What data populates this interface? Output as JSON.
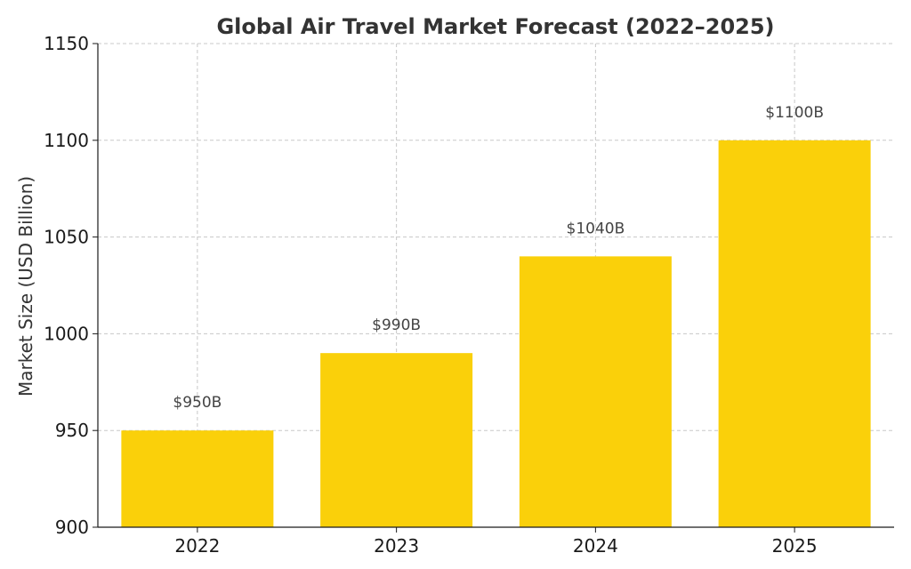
{
  "chart_data": {
    "type": "bar",
    "title": "Global Air Travel Market Forecast (2022–2025)",
    "xlabel": "",
    "ylabel": "Market Size (USD Billion)",
    "categories": [
      "2022",
      "2023",
      "2024",
      "2025"
    ],
    "values": [
      950,
      990,
      1040,
      1100
    ],
    "data_labels": [
      "$950B",
      "$990B",
      "$1040B",
      "$1100B"
    ],
    "ylim": [
      900,
      1150
    ],
    "yticks": [
      900,
      950,
      1000,
      1050,
      1100,
      1150
    ],
    "ytick_labels": [
      "900",
      "950",
      "1000",
      "1050",
      "1100",
      "1150"
    ],
    "grid": true,
    "bar_color": "#FAD00A"
  }
}
